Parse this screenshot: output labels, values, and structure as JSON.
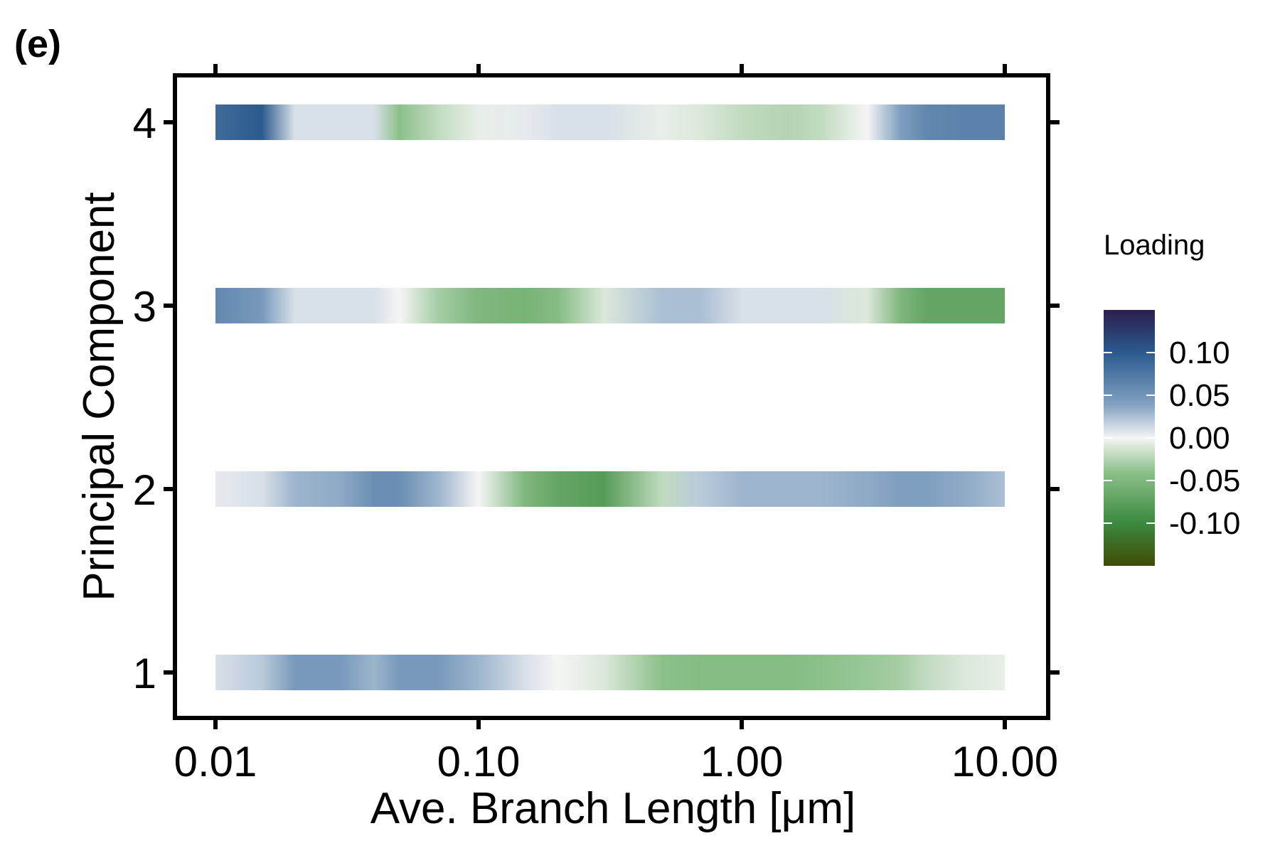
{
  "panel_label": "(e)",
  "chart_data": {
    "type": "heatmap",
    "title": "",
    "xlabel": "Ave. Branch Length [μm]",
    "ylabel": "Principal Component",
    "x_scale": "log",
    "xlim": [
      0.01,
      10
    ],
    "x_ticks": [
      0.01,
      0.1,
      1,
      10
    ],
    "x_tick_labels": [
      "0.01",
      "0.10",
      "1.00",
      "10.00"
    ],
    "y_ticks": [
      1,
      2,
      3,
      4
    ],
    "y_tick_labels": [
      "1",
      "2",
      "3",
      "4"
    ],
    "grid": false,
    "legend": {
      "title": "Loading",
      "placement": "right",
      "range": [
        -0.15,
        0.15
      ],
      "ticks": [
        0.1,
        0.05,
        0.0,
        -0.05,
        -0.1
      ],
      "tick_labels": [
        "0.10",
        "0.05",
        "0.00",
        "-0.05",
        "-0.10"
      ],
      "colors": {
        "positive_max": "#2a1e4e",
        "positive_high": "#2b5a8e",
        "positive_mid": "#7f9fc0",
        "zero": "#f5f5f5",
        "negative_mid": "#8cc08a",
        "negative_high": "#3b8a3f",
        "negative_max": "#404a05"
      }
    },
    "series": [
      {
        "component": 4,
        "x": [
          0.01,
          0.015,
          0.02,
          0.03,
          0.04,
          0.05,
          0.07,
          0.1,
          0.15,
          0.2,
          0.3,
          0.5,
          0.7,
          1,
          1.5,
          2,
          3,
          4,
          5,
          7,
          10
        ],
        "values": [
          0.085,
          0.1,
          0.01,
          0.01,
          0.01,
          -0.04,
          -0.02,
          -0.005,
          0.005,
          0.01,
          0.01,
          -0.005,
          -0.01,
          -0.02,
          -0.025,
          -0.02,
          0.0,
          0.04,
          0.06,
          0.065,
          0.065
        ]
      },
      {
        "component": 3,
        "x": [
          0.01,
          0.015,
          0.02,
          0.03,
          0.04,
          0.05,
          0.07,
          0.1,
          0.15,
          0.2,
          0.3,
          0.5,
          0.7,
          1,
          1.5,
          2,
          3,
          4,
          5,
          7,
          10
        ],
        "values": [
          0.06,
          0.045,
          0.01,
          0.01,
          0.01,
          0.0,
          -0.03,
          -0.05,
          -0.055,
          -0.045,
          -0.01,
          0.025,
          0.025,
          0.01,
          0.01,
          0.01,
          -0.01,
          -0.05,
          -0.07,
          -0.07,
          -0.07
        ]
      },
      {
        "component": 2,
        "x": [
          0.01,
          0.015,
          0.02,
          0.03,
          0.04,
          0.05,
          0.07,
          0.1,
          0.15,
          0.2,
          0.3,
          0.5,
          0.7,
          1,
          1.5,
          2,
          3,
          4,
          5,
          7,
          10
        ],
        "values": [
          0.005,
          0.01,
          0.03,
          0.035,
          0.055,
          0.055,
          0.03,
          0.0,
          -0.05,
          -0.07,
          -0.08,
          -0.02,
          0.02,
          0.03,
          0.03,
          0.03,
          0.035,
          0.04,
          0.04,
          0.035,
          0.025
        ]
      },
      {
        "component": 1,
        "x": [
          0.01,
          0.015,
          0.02,
          0.03,
          0.04,
          0.05,
          0.07,
          0.1,
          0.15,
          0.2,
          0.3,
          0.5,
          0.7,
          1,
          1.5,
          2,
          3,
          4,
          5,
          7,
          10
        ],
        "values": [
          0.01,
          0.02,
          0.045,
          0.045,
          0.03,
          0.045,
          0.045,
          0.03,
          0.01,
          0.0,
          -0.01,
          -0.04,
          -0.045,
          -0.045,
          -0.045,
          -0.04,
          -0.035,
          -0.03,
          -0.02,
          -0.01,
          -0.005
        ]
      }
    ]
  }
}
